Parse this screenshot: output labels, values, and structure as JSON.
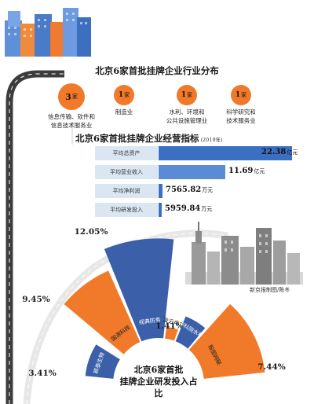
{
  "industry": {
    "title": "北京6家首批挂牌企业行业分布",
    "items": [
      {
        "count": "3",
        "unit": "家",
        "label_lines": [
          "信息传输、软件和",
          "信息技术服务业"
        ]
      },
      {
        "count": "1",
        "unit": "家",
        "label_lines": [
          "制造业"
        ]
      },
      {
        "count": "1",
        "unit": "家",
        "label_lines": [
          "水利、环境和",
          "公共设施管理业"
        ]
      },
      {
        "count": "1",
        "unit": "家",
        "label_lines": [
          "科学研究和",
          "技术服务业"
        ]
      }
    ]
  },
  "operations": {
    "title": "北京6家首批挂牌企业经营指标",
    "year": "(2019年)",
    "rows": [
      {
        "label": "平均总资产",
        "value": 22.38,
        "value_text": "22.38",
        "unit": "亿元"
      },
      {
        "label": "平均营业收入",
        "value": 11.69,
        "value_text": "11.69",
        "unit": "亿元"
      },
      {
        "label": "平均净利润",
        "value": 7565.82,
        "value_text": "7565.82",
        "unit": "万元"
      },
      {
        "label": "平均研发投入",
        "value": 5959.84,
        "value_text": "5959.84",
        "unit": "万元"
      }
    ]
  },
  "credit": "新京报制图/陈冬",
  "chart_data": {
    "type": "bar",
    "subtype": "radial",
    "title": "北京6家首批挂牌企业研发投入占比",
    "title_lines": [
      "北京6家首批",
      "挂牌企业研发投入占比"
    ],
    "categories": [
      "颖泰生物",
      "国源科技",
      "视典防务",
      "凌云电力",
      "中科院水利",
      "殷图网联"
    ],
    "values": [
      3.41,
      9.45,
      12.05,
      1.41,
      3.26,
      7.44
    ],
    "value_labels": [
      "3.41%",
      "9.45%",
      "12.05%",
      "1.41%",
      "3.26%",
      "7.44%"
    ],
    "colors": [
      "#3b5fa8",
      "#f07a2a",
      "#3b5fa8",
      "#f07a2a",
      "#3b5fa8",
      "#f07a2a"
    ],
    "unit": "%"
  }
}
